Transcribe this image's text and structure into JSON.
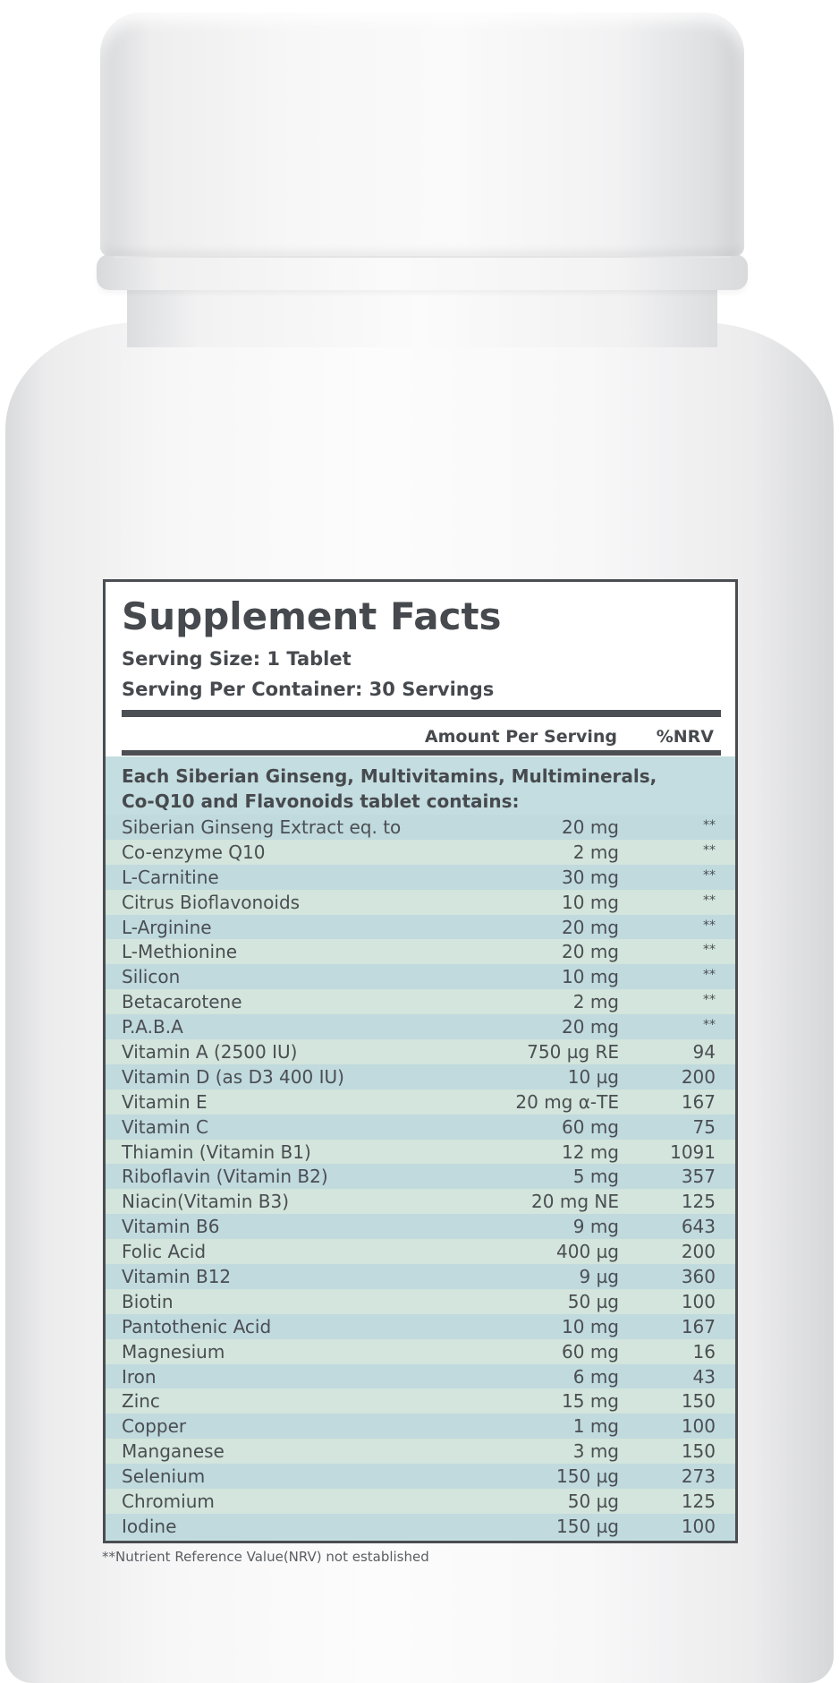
{
  "label": {
    "title": "Supplement Facts",
    "serving_size": "Serving Size: 1 Tablet",
    "servings_per_container": "Serving Per Container: 30 Servings",
    "col_amount": "Amount Per Serving",
    "col_nrv": "%NRV",
    "intro_line1": "Each Siberian Ginseng, Multivitamins, Multiminerals,",
    "intro_line2": "Co-Q10 and Flavonoids tablet contains:",
    "footnote": "**Nutrient Reference Value(NRV) not established"
  },
  "ingredients": [
    {
      "name": "Siberian Ginseng Extract eq. to",
      "amount": "20 mg",
      "nrv": "**"
    },
    {
      "name": "Co-enzyme Q10",
      "amount": "2 mg",
      "nrv": "**"
    },
    {
      "name": "L-Carnitine",
      "amount": "30 mg",
      "nrv": "**"
    },
    {
      "name": "Citrus Bioflavonoids",
      "amount": "10 mg",
      "nrv": "**"
    },
    {
      "name": "L-Arginine",
      "amount": "20 mg",
      "nrv": "**"
    },
    {
      "name": "L-Methionine",
      "amount": "20 mg",
      "nrv": "**"
    },
    {
      "name": "Silicon",
      "amount": "10 mg",
      "nrv": "**"
    },
    {
      "name": "Betacarotene",
      "amount": "2 mg",
      "nrv": "**"
    },
    {
      "name": "P.A.B.A",
      "amount": "20 mg",
      "nrv": "**"
    },
    {
      "name": "Vitamin A (2500 IU)",
      "amount": "750 µg RE",
      "nrv": "94"
    },
    {
      "name": "Vitamin D (as D3 400 IU)",
      "amount": "10 µg",
      "nrv": "200"
    },
    {
      "name": "Vitamin E",
      "amount": "20 mg α-TE",
      "nrv": "167"
    },
    {
      "name": "Vitamin C",
      "amount": "60 mg",
      "nrv": "75"
    },
    {
      "name": "Thiamin (Vitamin B1)",
      "amount": "12 mg",
      "nrv": "1091"
    },
    {
      "name": "Riboflavin (Vitamin B2)",
      "amount": "5 mg",
      "nrv": "357"
    },
    {
      "name": "Niacin(Vitamin B3)",
      "amount": "20 mg NE",
      "nrv": "125"
    },
    {
      "name": "Vitamin B6",
      "amount": "9 mg",
      "nrv": "643"
    },
    {
      "name": "Folic Acid",
      "amount": "400 µg",
      "nrv": "200"
    },
    {
      "name": "Vitamin B12",
      "amount": "9 µg",
      "nrv": "360"
    },
    {
      "name": "Biotin",
      "amount": "50 µg",
      "nrv": "100"
    },
    {
      "name": "Pantothenic Acid",
      "amount": "10 mg",
      "nrv": "167"
    },
    {
      "name": "Magnesium",
      "amount": "60 mg",
      "nrv": "16"
    },
    {
      "name": "Iron",
      "amount": "6 mg",
      "nrv": "43"
    },
    {
      "name": "Zinc",
      "amount": "15 mg",
      "nrv": "150"
    },
    {
      "name": "Copper",
      "amount": "1 mg",
      "nrv": "100"
    },
    {
      "name": "Manganese",
      "amount": "3 mg",
      "nrv": "150"
    },
    {
      "name": "Selenium",
      "amount": "150 µg",
      "nrv": "273"
    },
    {
      "name": "Chromium",
      "amount": "50 µg",
      "nrv": "125"
    },
    {
      "name": "Iodine",
      "amount": "150 µg",
      "nrv": "100"
    }
  ],
  "colors": {
    "ink": "#464a4e",
    "row_blue": "#c0dade",
    "row_green": "#d3e5dc",
    "border": "#4a4d51"
  }
}
